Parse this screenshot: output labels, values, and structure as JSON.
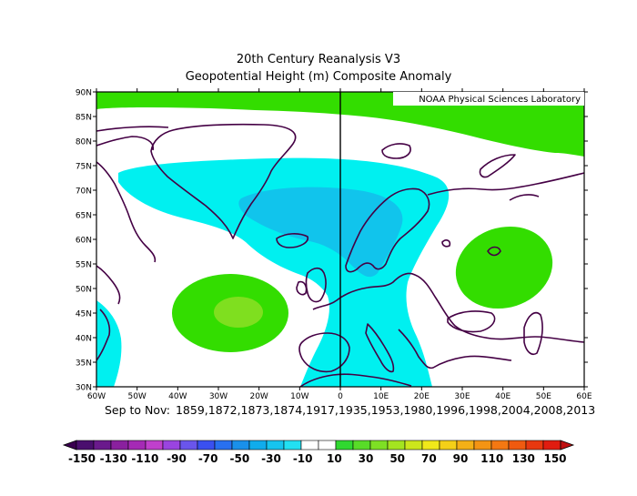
{
  "title": "20th Century Reanalysis V3",
  "subtitle": "Geopotential Height (m) Composite Anomaly",
  "credit": "NOAA Physical Sciences Laboratory",
  "period": {
    "season": "Sep to Nov:",
    "years": "1859,1872,1873,1874,1917,1935,1953,1980,1996,1998,2004,2008,2013"
  },
  "axes": {
    "lat_labels": [
      "90N",
      "85N",
      "80N",
      "75N",
      "70N",
      "65N",
      "60N",
      "55N",
      "50N",
      "45N",
      "40N",
      "35N",
      "30N"
    ],
    "lon_labels": [
      "60W",
      "50W",
      "40W",
      "30W",
      "20W",
      "10W",
      "0",
      "10E",
      "20E",
      "30E",
      "40E",
      "50E",
      "60E"
    ],
    "lat_range": [
      30,
      90
    ],
    "lon_range": [
      -60,
      60
    ]
  },
  "colorbar": {
    "labels": [
      "-150",
      "-130",
      "-110",
      "-90",
      "-70",
      "-50",
      "-30",
      "-10",
      "10",
      "30",
      "50",
      "70",
      "90",
      "110",
      "130",
      "150"
    ],
    "colors": [
      "#4a0f6e",
      "#6a1a8c",
      "#8a209e",
      "#a52ab5",
      "#c040cc",
      "#9a44e0",
      "#6a55ec",
      "#3a50f0",
      "#2870f0",
      "#1a90ea",
      "#10acec",
      "#16c4ee",
      "#22e0f2",
      "#ffffff",
      "#ffffff",
      "#30d830",
      "#58dc28",
      "#7ee024",
      "#a4e420",
      "#cce61c",
      "#f0e81a",
      "#f4d018",
      "#f4b016",
      "#f49414",
      "#f47812",
      "#f05a10",
      "#e83810",
      "#e01c10"
    ]
  },
  "anomaly_colors": {
    "neg_weak": "#00f0f0",
    "neg_mid": "#11c4ec",
    "pos_weak": "#33dd00",
    "pos_mid": "#7fdf1f"
  }
}
